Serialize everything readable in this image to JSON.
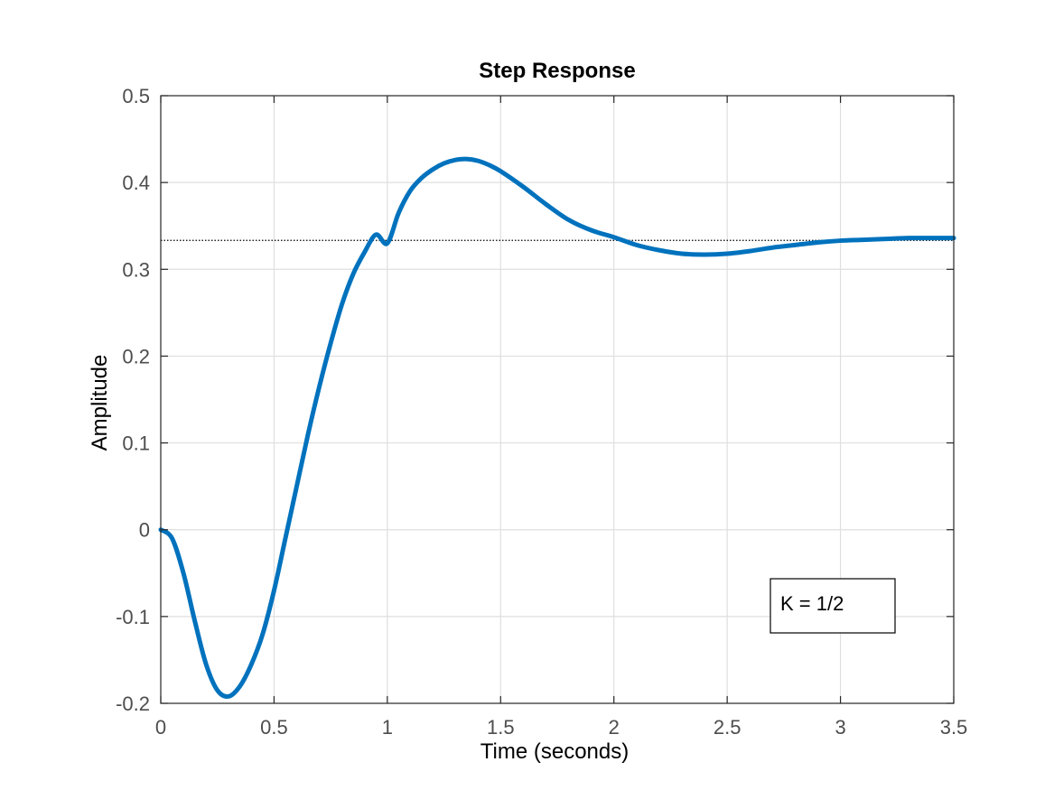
{
  "chart_data": {
    "type": "line",
    "title": "Step Response",
    "xlabel": "Time (seconds)",
    "ylabel": "Amplitude",
    "xlim": [
      0,
      3.5
    ],
    "ylim": [
      -0.2,
      0.5
    ],
    "xticks": [
      0,
      0.5,
      1,
      1.5,
      2,
      2.5,
      3,
      3.5
    ],
    "xtick_labels": [
      "0",
      "0.5",
      "1",
      "1.5",
      "2",
      "2.5",
      "3",
      "3.5"
    ],
    "yticks": [
      -0.2,
      -0.1,
      0,
      0.1,
      0.2,
      0.3,
      0.4,
      0.5
    ],
    "ytick_labels": [
      "-0.2",
      "-0.1",
      "0",
      "0.1",
      "0.2",
      "0.3",
      "0.4",
      "0.5"
    ],
    "grid": true,
    "series": [
      {
        "color": "#0072BD",
        "x": [
          0,
          0.05,
          0.1,
          0.15,
          0.2,
          0.25,
          0.3,
          0.35,
          0.4,
          0.45,
          0.5,
          0.55,
          0.6,
          0.65,
          0.7,
          0.75,
          0.8,
          0.85,
          0.9,
          0.95,
          1.0,
          1.05,
          1.1,
          1.15,
          1.2,
          1.25,
          1.3,
          1.35,
          1.4,
          1.45,
          1.5,
          1.6,
          1.7,
          1.8,
          1.9,
          2.0,
          2.1,
          2.2,
          2.3,
          2.4,
          2.5,
          2.6,
          2.7,
          2.8,
          2.9,
          3.0,
          3.1,
          3.2,
          3.3,
          3.4,
          3.5
        ],
        "y": [
          0,
          -0.01,
          -0.05,
          -0.105,
          -0.155,
          -0.185,
          -0.192,
          -0.18,
          -0.155,
          -0.12,
          -0.07,
          -0.01,
          0.05,
          0.11,
          0.165,
          0.215,
          0.26,
          0.295,
          0.32,
          0.34,
          0.33,
          0.365,
          0.39,
          0.405,
          0.415,
          0.422,
          0.426,
          0.427,
          0.425,
          0.42,
          0.413,
          0.395,
          0.375,
          0.357,
          0.345,
          0.337,
          0.328,
          0.322,
          0.318,
          0.317,
          0.318,
          0.321,
          0.325,
          0.328,
          0.331,
          0.333,
          0.334,
          0.335,
          0.336,
          0.336,
          0.336
        ]
      }
    ],
    "reference_line": {
      "y": 0.3333,
      "style": "dotted",
      "color": "#000000"
    },
    "annotation": {
      "text": "K = 1/2",
      "x": 2.72,
      "y": -0.07
    }
  }
}
